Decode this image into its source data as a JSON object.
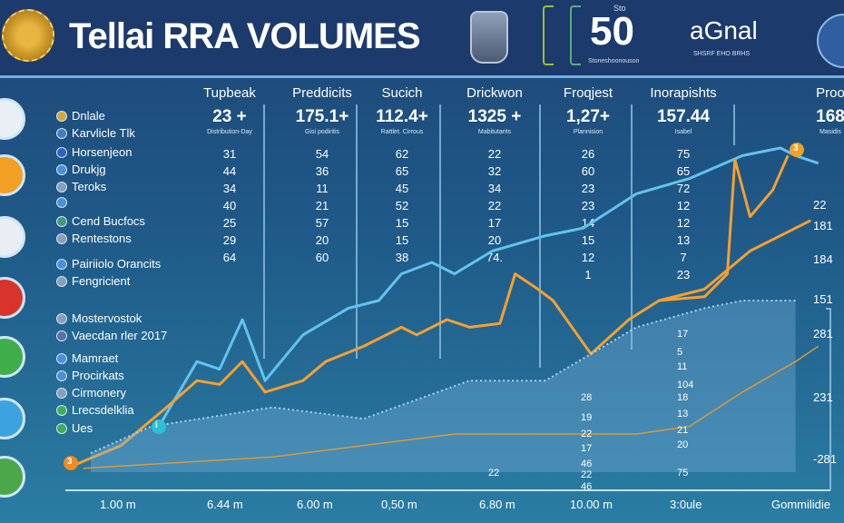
{
  "header": {
    "title": "Tellai RRA VOLUMES",
    "badge_number": "50",
    "badge_top": "Sto",
    "badge_caption": "Stoneshoonouson",
    "brand": "aGnal",
    "brand_caption": "SHSRF EHO BRHS"
  },
  "legend": [
    {
      "label": "Dnlale",
      "color": "#d9a53a"
    },
    {
      "label": "Karvlicle Tlk",
      "color": "#3f7fc1"
    },
    {
      "label": "Horsenjeon",
      "color": "#2f5fc0"
    },
    {
      "label": "Drukjg",
      "color": "#4b90d8"
    },
    {
      "label": "Teroks",
      "color": "#8a9fb5"
    },
    {
      "label": "",
      "color": "#4b90d8"
    },
    {
      "label": "Cend Bucfocs",
      "color": "#3e9a7a"
    },
    {
      "label": "Rentestons",
      "color": "#8a9fb5"
    },
    {
      "label": "Pairiiolo Orancits",
      "color": "#4b90d8"
    },
    {
      "label": "Fengricient",
      "color": "#8a9fb5"
    },
    {
      "label": "Mostervostok",
      "color": "#8a9fb5"
    },
    {
      "label": "Vaecdan rler 2017",
      "color": "#5d6fa8"
    },
    {
      "label": "Mamraet",
      "color": "#4b90d8"
    },
    {
      "label": "Procirkats",
      "color": "#4b90d8"
    },
    {
      "label": "Cirmonery",
      "color": "#8a9fb5"
    },
    {
      "label": "Lrecsdelklia",
      "color": "#3fae5a"
    },
    {
      "label": "Ues",
      "color": "#3fae5a"
    }
  ],
  "side_icons": [
    {
      "name": "book-icon",
      "color": "#e8f0f5"
    },
    {
      "name": "coin-icon",
      "color": "#f2a024"
    },
    {
      "name": "gear-icon",
      "color": "#e8eef3"
    },
    {
      "name": "gift-icon",
      "color": "#d9342c"
    },
    {
      "name": "leaf-icon",
      "color": "#3fae4a"
    },
    {
      "name": "cup-icon",
      "color": "#3da3e0"
    },
    {
      "name": "plant-icon",
      "color": "#4aa84a"
    }
  ],
  "chart_data": {
    "type": "line",
    "columns": [
      {
        "header": "Tupbeak",
        "total": "23 +",
        "sub": "Distribution-Day",
        "values": [
          "31",
          "44",
          "34",
          "40",
          "25",
          "29",
          "64"
        ]
      },
      {
        "header": "Preddicits",
        "total": "175.1+",
        "sub": "Gisi podiritis",
        "values": [
          "54",
          "36",
          "11",
          "21",
          "57",
          "20",
          "60"
        ]
      },
      {
        "header": "Sucich",
        "total": "112.4+",
        "sub": "Rattlet. Cirrous",
        "values": [
          "62",
          "65",
          "45",
          "52",
          "15",
          "15",
          "38"
        ]
      },
      {
        "header": "Drickwon",
        "total": "1325 +",
        "sub": "Mabitutarits",
        "values": [
          "22",
          "32",
          "34",
          "22",
          "17",
          "20",
          "74."
        ]
      },
      {
        "header": "Froqjest",
        "total": "1,27+",
        "sub": "Plannision",
        "values": [
          "26",
          "60",
          "23",
          "23",
          "14",
          "15",
          "12",
          "1"
        ]
      },
      {
        "header": "Inorapishts",
        "total": "157.44",
        "sub": "Isabel",
        "values": [
          "75",
          "65",
          "72",
          "12",
          "12",
          "13",
          "7",
          "23"
        ]
      },
      {
        "header": "Proo",
        "total": "168",
        "sub": "Masidis"
      }
    ],
    "inner_labels": {
      "col_a": [
        "28",
        "19",
        "22",
        "17",
        "46",
        "22"
      ],
      "col_b": [
        "17",
        "5",
        "11",
        "104",
        "18",
        "13",
        "21",
        "20",
        "75"
      ],
      "col_a_bottom": "46",
      "col_left_bottom": "22"
    },
    "right_labels": [
      "22",
      "181",
      "184",
      "151",
      "281",
      "231",
      "-281"
    ],
    "x_tick_labels": [
      "1.00 m",
      "6.44 m",
      "6.00 m",
      "0,50 m",
      "6.80 m",
      "10.00 m",
      "3:0ule",
      "Gommilidie"
    ],
    "markers": [
      {
        "label": "3",
        "color": "#f28a1e"
      },
      {
        "label": "i",
        "color": "#2bc0d8"
      },
      {
        "label": "3",
        "color": "#f2a024"
      }
    ],
    "series": [
      {
        "color": "#63c3ee",
        "x": [
          12,
          17,
          20,
          23,
          26,
          31,
          37,
          41,
          44,
          48,
          51,
          56,
          63,
          68,
          75,
          82,
          89,
          94,
          96,
          99
        ],
        "y": [
          12,
          29,
          27,
          40,
          24,
          36,
          43,
          45,
          52,
          55,
          52,
          58,
          62,
          64,
          73,
          77,
          83,
          85,
          83,
          81
        ]
      },
      {
        "color": "#f5a030",
        "x": [
          1,
          7,
          13,
          17,
          20,
          23,
          26,
          31,
          34,
          39,
          44,
          46,
          50,
          53,
          57,
          59,
          62,
          64,
          69,
          74,
          78,
          84,
          87,
          88,
          90,
          93,
          95
        ],
        "y": [
          2,
          7,
          17,
          24,
          23,
          29,
          21,
          24,
          29,
          33,
          38,
          36,
          40,
          38,
          39,
          52,
          48,
          45,
          31,
          40,
          45,
          46,
          52,
          82,
          67,
          74,
          83
        ]
      },
      {
        "color": "#f5a030",
        "x": [
          78,
          84,
          90,
          96,
          98
        ],
        "y": [
          45,
          48,
          58,
          64,
          66
        ]
      },
      {
        "color": "#a8d2ee",
        "style": "dotted-area",
        "x": [
          3,
          11,
          27,
          39,
          53,
          63,
          75,
          84,
          89,
          96
        ],
        "y": [
          5,
          12,
          17,
          14,
          24,
          24,
          38,
          43,
          45,
          45
        ]
      },
      {
        "color": "#d99a3a",
        "x": [
          2,
          27,
          51,
          75,
          82,
          89,
          96,
          99
        ],
        "y": [
          1,
          4,
          10,
          10,
          12,
          21,
          29,
          33
        ]
      }
    ],
    "grid": false
  }
}
